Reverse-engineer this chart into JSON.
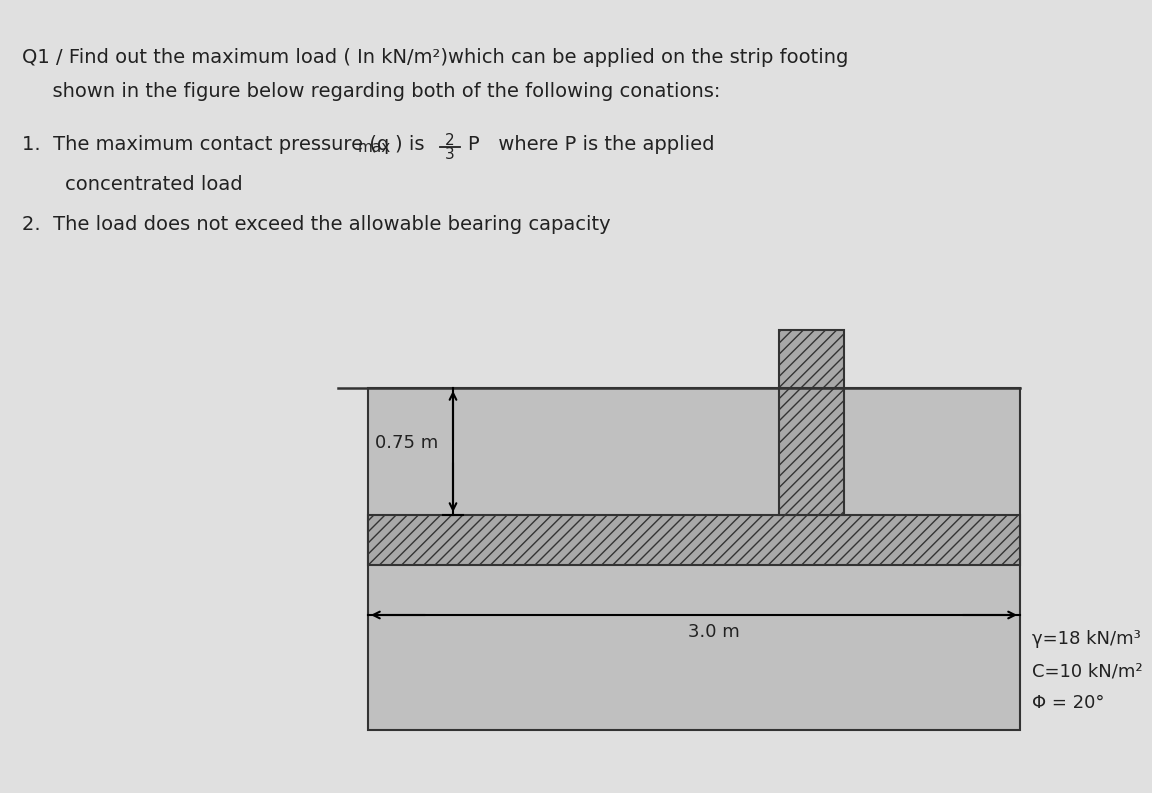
{
  "bg_color": "#e0e0e0",
  "soil_color": "#c0c0c0",
  "footing_color": "#a8a8a8",
  "line_color": "#333333",
  "text_color": "#222222",
  "title_line1": "Q1 / Find out the maximum load ( In kN/m²)which can be applied on the strip footing",
  "title_line2": "  shown in the figure below regarding both of the following conations:",
  "param1": "γ=18 kN/m³",
  "param2": "C=10 kN/m²",
  "param3": "Φ = 20°",
  "dim_075": "0.75 m",
  "dim_30": "3.0 m",
  "font_size_title": 14,
  "font_size_body": 14,
  "font_size_small": 11,
  "font_size_subscript": 11,
  "font_size_param": 13
}
